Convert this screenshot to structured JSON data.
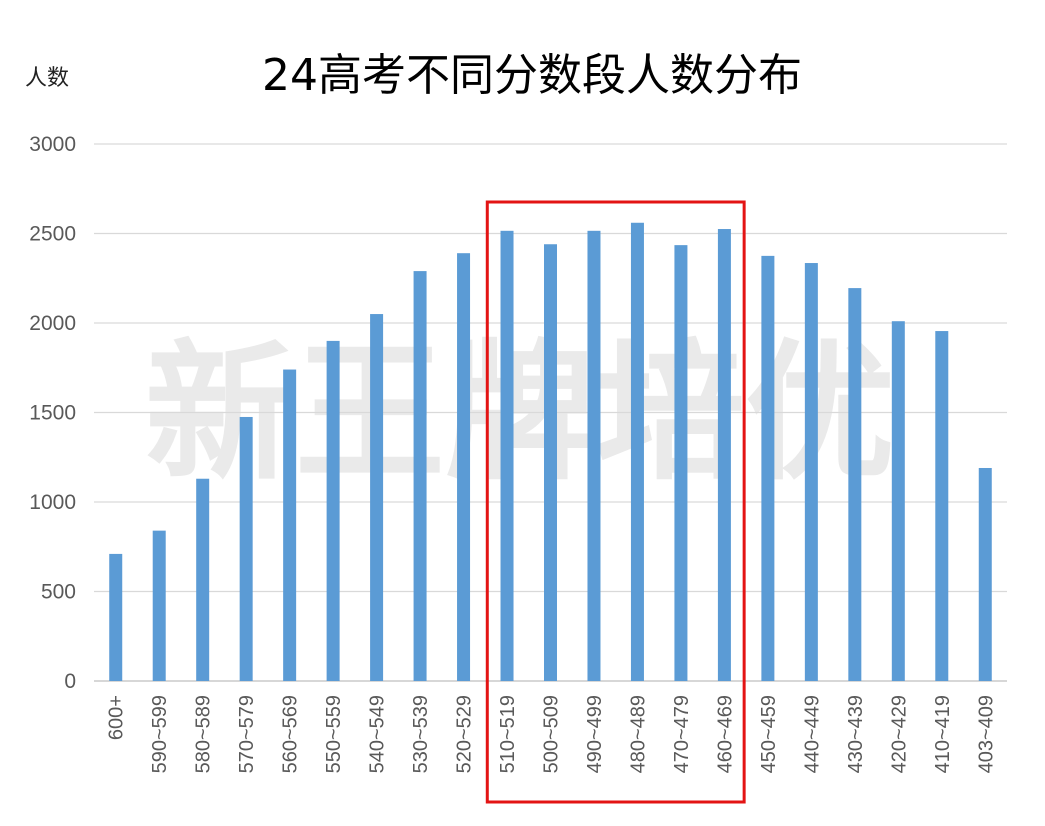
{
  "watermark": "新王牌培优",
  "colors": {
    "bar": "#5b9bd5",
    "grid": "#d9d9d9",
    "highlight": "#e31414",
    "axis": "#bfbfbf"
  },
  "chart_data": {
    "type": "bar",
    "title": "24高考不同分数段人数分布",
    "ylabel": "人数",
    "xlabel": "",
    "ylim": [
      0,
      3000
    ],
    "yticks": [
      0,
      500,
      1000,
      1500,
      2000,
      2500,
      3000
    ],
    "grid": true,
    "categories": [
      "600+",
      "590~599",
      "580~589",
      "570~579",
      "560~569",
      "550~559",
      "540~549",
      "530~539",
      "520~529",
      "510~519",
      "500~509",
      "490~499",
      "480~489",
      "470~479",
      "460~469",
      "450~459",
      "440~449",
      "430~439",
      "420~429",
      "410~419",
      "403~409"
    ],
    "values": [
      710,
      840,
      1130,
      1475,
      1740,
      1900,
      2050,
      2290,
      2390,
      2515,
      2440,
      2515,
      2560,
      2435,
      2525,
      2375,
      2335,
      2195,
      2010,
      1955,
      1190
    ],
    "highlight_range": [
      "510~519",
      "460~469"
    ]
  }
}
